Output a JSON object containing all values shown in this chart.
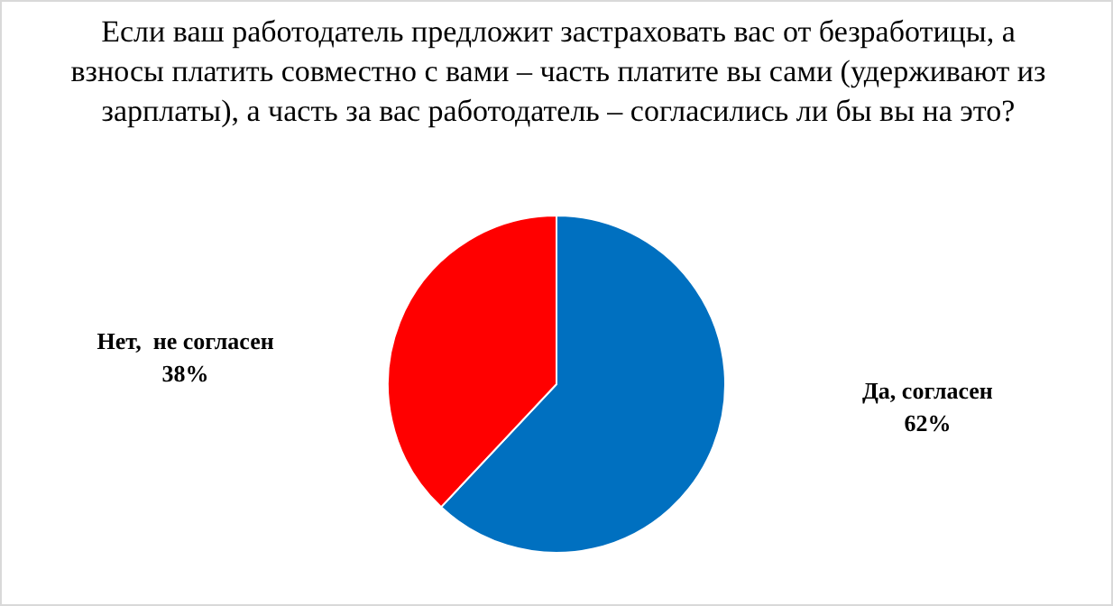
{
  "chart_data": {
    "type": "pie",
    "title": "Если ваш работодатель предложит застраховать вас от безработицы, а взносы платить совместно с вами – часть платите вы сами (удерживают из зарплаты), а часть за вас работодатель – согласились ли бы вы на это?",
    "categories": [
      "Да, согласен",
      "Нет,  не согласен"
    ],
    "values": [
      62,
      38
    ],
    "colors": [
      "#0070c0",
      "#ff0000"
    ],
    "value_labels": [
      "62%",
      "38%"
    ],
    "legend": false
  }
}
